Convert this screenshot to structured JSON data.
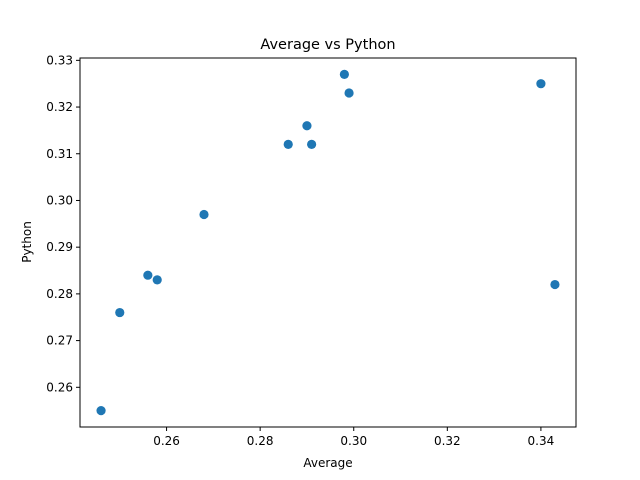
{
  "chart_data": {
    "type": "scatter",
    "title": "Average vs Python",
    "xlabel": "Average",
    "ylabel": "Python",
    "xlim": [
      0.2415,
      0.3475
    ],
    "ylim": [
      0.2515,
      0.3305
    ],
    "xticks": [
      0.26,
      0.28,
      0.3,
      0.32,
      0.34
    ],
    "xtick_labels": [
      "0.26",
      "0.28",
      "0.30",
      "0.32",
      "0.34"
    ],
    "yticks": [
      0.26,
      0.27,
      0.28,
      0.29,
      0.3,
      0.31,
      0.32,
      0.33
    ],
    "ytick_labels": [
      "0.26",
      "0.27",
      "0.28",
      "0.29",
      "0.30",
      "0.31",
      "0.32",
      "0.33"
    ],
    "grid": false,
    "marker_color": "#1f77b4",
    "points": [
      {
        "x": 0.246,
        "y": 0.255
      },
      {
        "x": 0.25,
        "y": 0.276
      },
      {
        "x": 0.256,
        "y": 0.284
      },
      {
        "x": 0.258,
        "y": 0.283
      },
      {
        "x": 0.268,
        "y": 0.297
      },
      {
        "x": 0.286,
        "y": 0.312
      },
      {
        "x": 0.29,
        "y": 0.316
      },
      {
        "x": 0.291,
        "y": 0.312
      },
      {
        "x": 0.298,
        "y": 0.327
      },
      {
        "x": 0.299,
        "y": 0.323
      },
      {
        "x": 0.34,
        "y": 0.325
      },
      {
        "x": 0.343,
        "y": 0.282
      }
    ]
  }
}
